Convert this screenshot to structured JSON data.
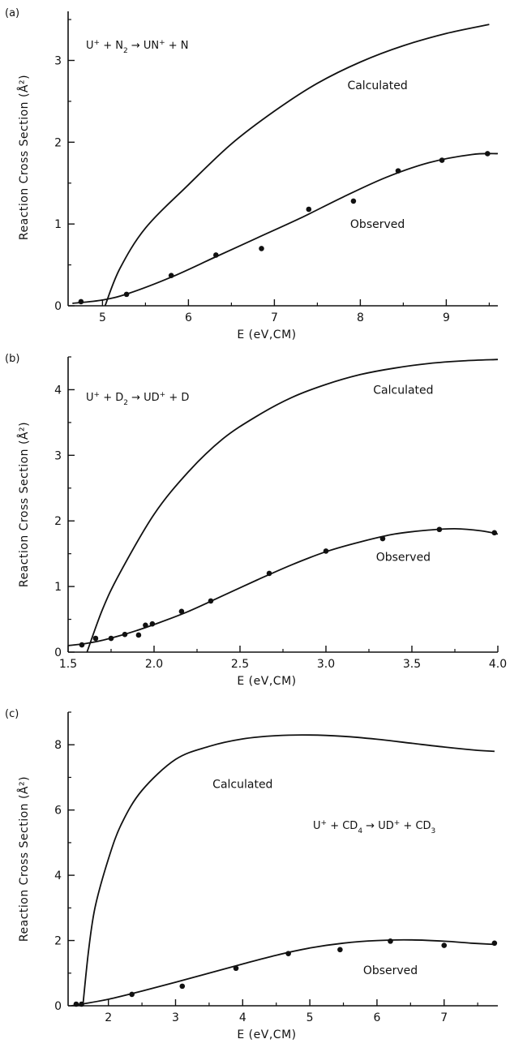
{
  "chart_data": [
    {
      "type": "line",
      "panel_label": "(a)",
      "reaction": {
        "parts": [
          {
            "t": "U"
          },
          {
            "t": "+",
            "sup": true
          },
          {
            "t": " + N"
          },
          {
            "t": "2",
            "sub": true
          },
          {
            "t": " → UN"
          },
          {
            "t": "+",
            "sup": true
          },
          {
            "t": " + N"
          }
        ]
      },
      "xlabel": "E (eV,CM)",
      "ylabel": "Reaction Cross Section (Å²)",
      "xlim": [
        4.6,
        9.6
      ],
      "ylim": [
        0,
        3.6
      ],
      "xticks": [
        5,
        6,
        7,
        8,
        9
      ],
      "yticks": [
        0,
        1,
        2,
        3
      ],
      "series": [
        {
          "name": "Calculated",
          "style": "line",
          "x": [
            5.03,
            5.2,
            5.5,
            6.0,
            6.5,
            7.0,
            7.5,
            8.0,
            8.5,
            9.0,
            9.5
          ],
          "y": [
            0.0,
            0.45,
            0.95,
            1.48,
            1.98,
            2.38,
            2.72,
            2.98,
            3.18,
            3.33,
            3.44
          ]
        },
        {
          "name": "Observed",
          "style": "line",
          "x": [
            4.65,
            5.0,
            5.3,
            5.8,
            6.3,
            6.8,
            7.3,
            7.8,
            8.3,
            8.8,
            9.3,
            9.6
          ],
          "y": [
            0.03,
            0.07,
            0.15,
            0.35,
            0.59,
            0.83,
            1.07,
            1.33,
            1.57,
            1.75,
            1.85,
            1.86
          ]
        },
        {
          "name": "Observed",
          "style": "points",
          "x": [
            4.75,
            5.28,
            5.8,
            6.32,
            6.85,
            7.4,
            7.92,
            8.44,
            8.95,
            9.48
          ],
          "y": [
            0.05,
            0.14,
            0.37,
            0.62,
            0.7,
            1.18,
            1.28,
            1.65,
            1.78,
            1.86
          ]
        }
      ],
      "annotations": [
        {
          "text": "Calculated",
          "x": 8.2,
          "y": 2.7
        },
        {
          "text": "Observed",
          "x": 8.2,
          "y": 1.0
        }
      ]
    },
    {
      "type": "line",
      "panel_label": "(b)",
      "reaction": {
        "parts": [
          {
            "t": "U"
          },
          {
            "t": "+",
            "sup": true
          },
          {
            "t": " + D"
          },
          {
            "t": "2",
            "sub": true
          },
          {
            "t": " → UD"
          },
          {
            "t": "+",
            "sup": true
          },
          {
            "t": " + D"
          }
        ]
      },
      "xlabel": "E (eV,CM)",
      "ylabel": "Reaction Cross Section (Å²)",
      "xlim": [
        1.5,
        4.0
      ],
      "ylim": [
        0,
        4.5
      ],
      "xticks": [
        1.5,
        2.0,
        2.5,
        3.0,
        3.5,
        4.0
      ],
      "xtick_labels": [
        "1.5",
        "2.0",
        "2.5",
        "3.0",
        "3.5",
        "4.0"
      ],
      "yticks": [
        0,
        1,
        2,
        3,
        4
      ],
      "series": [
        {
          "name": "Calculated",
          "style": "line",
          "x": [
            1.61,
            1.7,
            1.8,
            2.0,
            2.2,
            2.4,
            2.6,
            2.8,
            3.0,
            3.2,
            3.4,
            3.6,
            3.8,
            4.0
          ],
          "y": [
            0.0,
            0.65,
            1.2,
            2.1,
            2.75,
            3.25,
            3.6,
            3.88,
            4.08,
            4.23,
            4.33,
            4.4,
            4.44,
            4.46
          ]
        },
        {
          "name": "Observed",
          "style": "line",
          "x": [
            1.5,
            1.6,
            1.7,
            1.8,
            1.9,
            2.0,
            2.2,
            2.4,
            2.6,
            2.8,
            3.0,
            3.2,
            3.4,
            3.6,
            3.75,
            3.9,
            4.0
          ],
          "y": [
            0.1,
            0.13,
            0.18,
            0.25,
            0.33,
            0.42,
            0.62,
            0.86,
            1.1,
            1.33,
            1.53,
            1.68,
            1.8,
            1.86,
            1.88,
            1.85,
            1.8
          ]
        },
        {
          "name": "Observed",
          "style": "points",
          "x": [
            1.58,
            1.66,
            1.75,
            1.83,
            1.91,
            1.95,
            1.99,
            2.16,
            2.33,
            2.67,
            3.0,
            3.33,
            3.66,
            3.98
          ],
          "y": [
            0.11,
            0.21,
            0.21,
            0.27,
            0.26,
            0.41,
            0.43,
            0.62,
            0.78,
            1.2,
            1.54,
            1.73,
            1.87,
            1.82
          ]
        }
      ],
      "annotations": [
        {
          "text": "Calculated",
          "x": 3.45,
          "y": 4.0
        },
        {
          "text": "Observed",
          "x": 3.45,
          "y": 1.45
        }
      ]
    },
    {
      "type": "line",
      "panel_label": "(c)",
      "reaction": {
        "parts": [
          {
            "t": "U"
          },
          {
            "t": "+",
            "sup": true
          },
          {
            "t": " + CD"
          },
          {
            "t": "4",
            "sub": true
          },
          {
            "t": " → UD"
          },
          {
            "t": "+",
            "sup": true
          },
          {
            "t": " + CD"
          },
          {
            "t": "3",
            "sub": true
          }
        ]
      },
      "xlabel": "E (eV,CM)",
      "ylabel": "Reaction Cross Section (Å²)",
      "xlim": [
        1.4,
        7.8
      ],
      "ylim": [
        0,
        9
      ],
      "xticks": [
        2,
        3,
        4,
        5,
        6,
        7
      ],
      "yticks": [
        0,
        2,
        4,
        6,
        8
      ],
      "series": [
        {
          "name": "Calculated",
          "style": "line",
          "x": [
            1.62,
            1.7,
            1.8,
            2.0,
            2.2,
            2.5,
            3.0,
            3.5,
            4.0,
            4.5,
            5.0,
            5.5,
            6.0,
            6.5,
            7.0,
            7.5,
            7.75
          ],
          "y": [
            0.0,
            1.6,
            3.0,
            4.5,
            5.6,
            6.6,
            7.55,
            7.95,
            8.18,
            8.28,
            8.3,
            8.26,
            8.17,
            8.05,
            7.93,
            7.83,
            7.8
          ]
        },
        {
          "name": "Observed",
          "style": "line",
          "x": [
            1.45,
            1.6,
            2.0,
            2.5,
            3.0,
            3.5,
            4.0,
            4.5,
            5.0,
            5.5,
            6.0,
            6.5,
            7.0,
            7.4,
            7.75
          ],
          "y": [
            0.0,
            0.05,
            0.2,
            0.45,
            0.72,
            1.0,
            1.28,
            1.55,
            1.77,
            1.92,
            2.0,
            2.02,
            1.98,
            1.92,
            1.88
          ]
        },
        {
          "name": "Observed",
          "style": "points",
          "x": [
            1.52,
            1.6,
            2.35,
            3.1,
            3.9,
            4.68,
            5.45,
            6.2,
            7.0,
            7.75
          ],
          "y": [
            0.05,
            0.05,
            0.35,
            0.6,
            1.15,
            1.6,
            1.72,
            1.98,
            1.85,
            1.92
          ]
        }
      ],
      "annotations": [
        {
          "text": "Calculated",
          "x": 4.0,
          "y": 6.8
        },
        {
          "text": "Observed",
          "x": 6.2,
          "y": 1.1
        }
      ]
    }
  ],
  "colors": {
    "ink": "#111111",
    "background": "#ffffff"
  }
}
